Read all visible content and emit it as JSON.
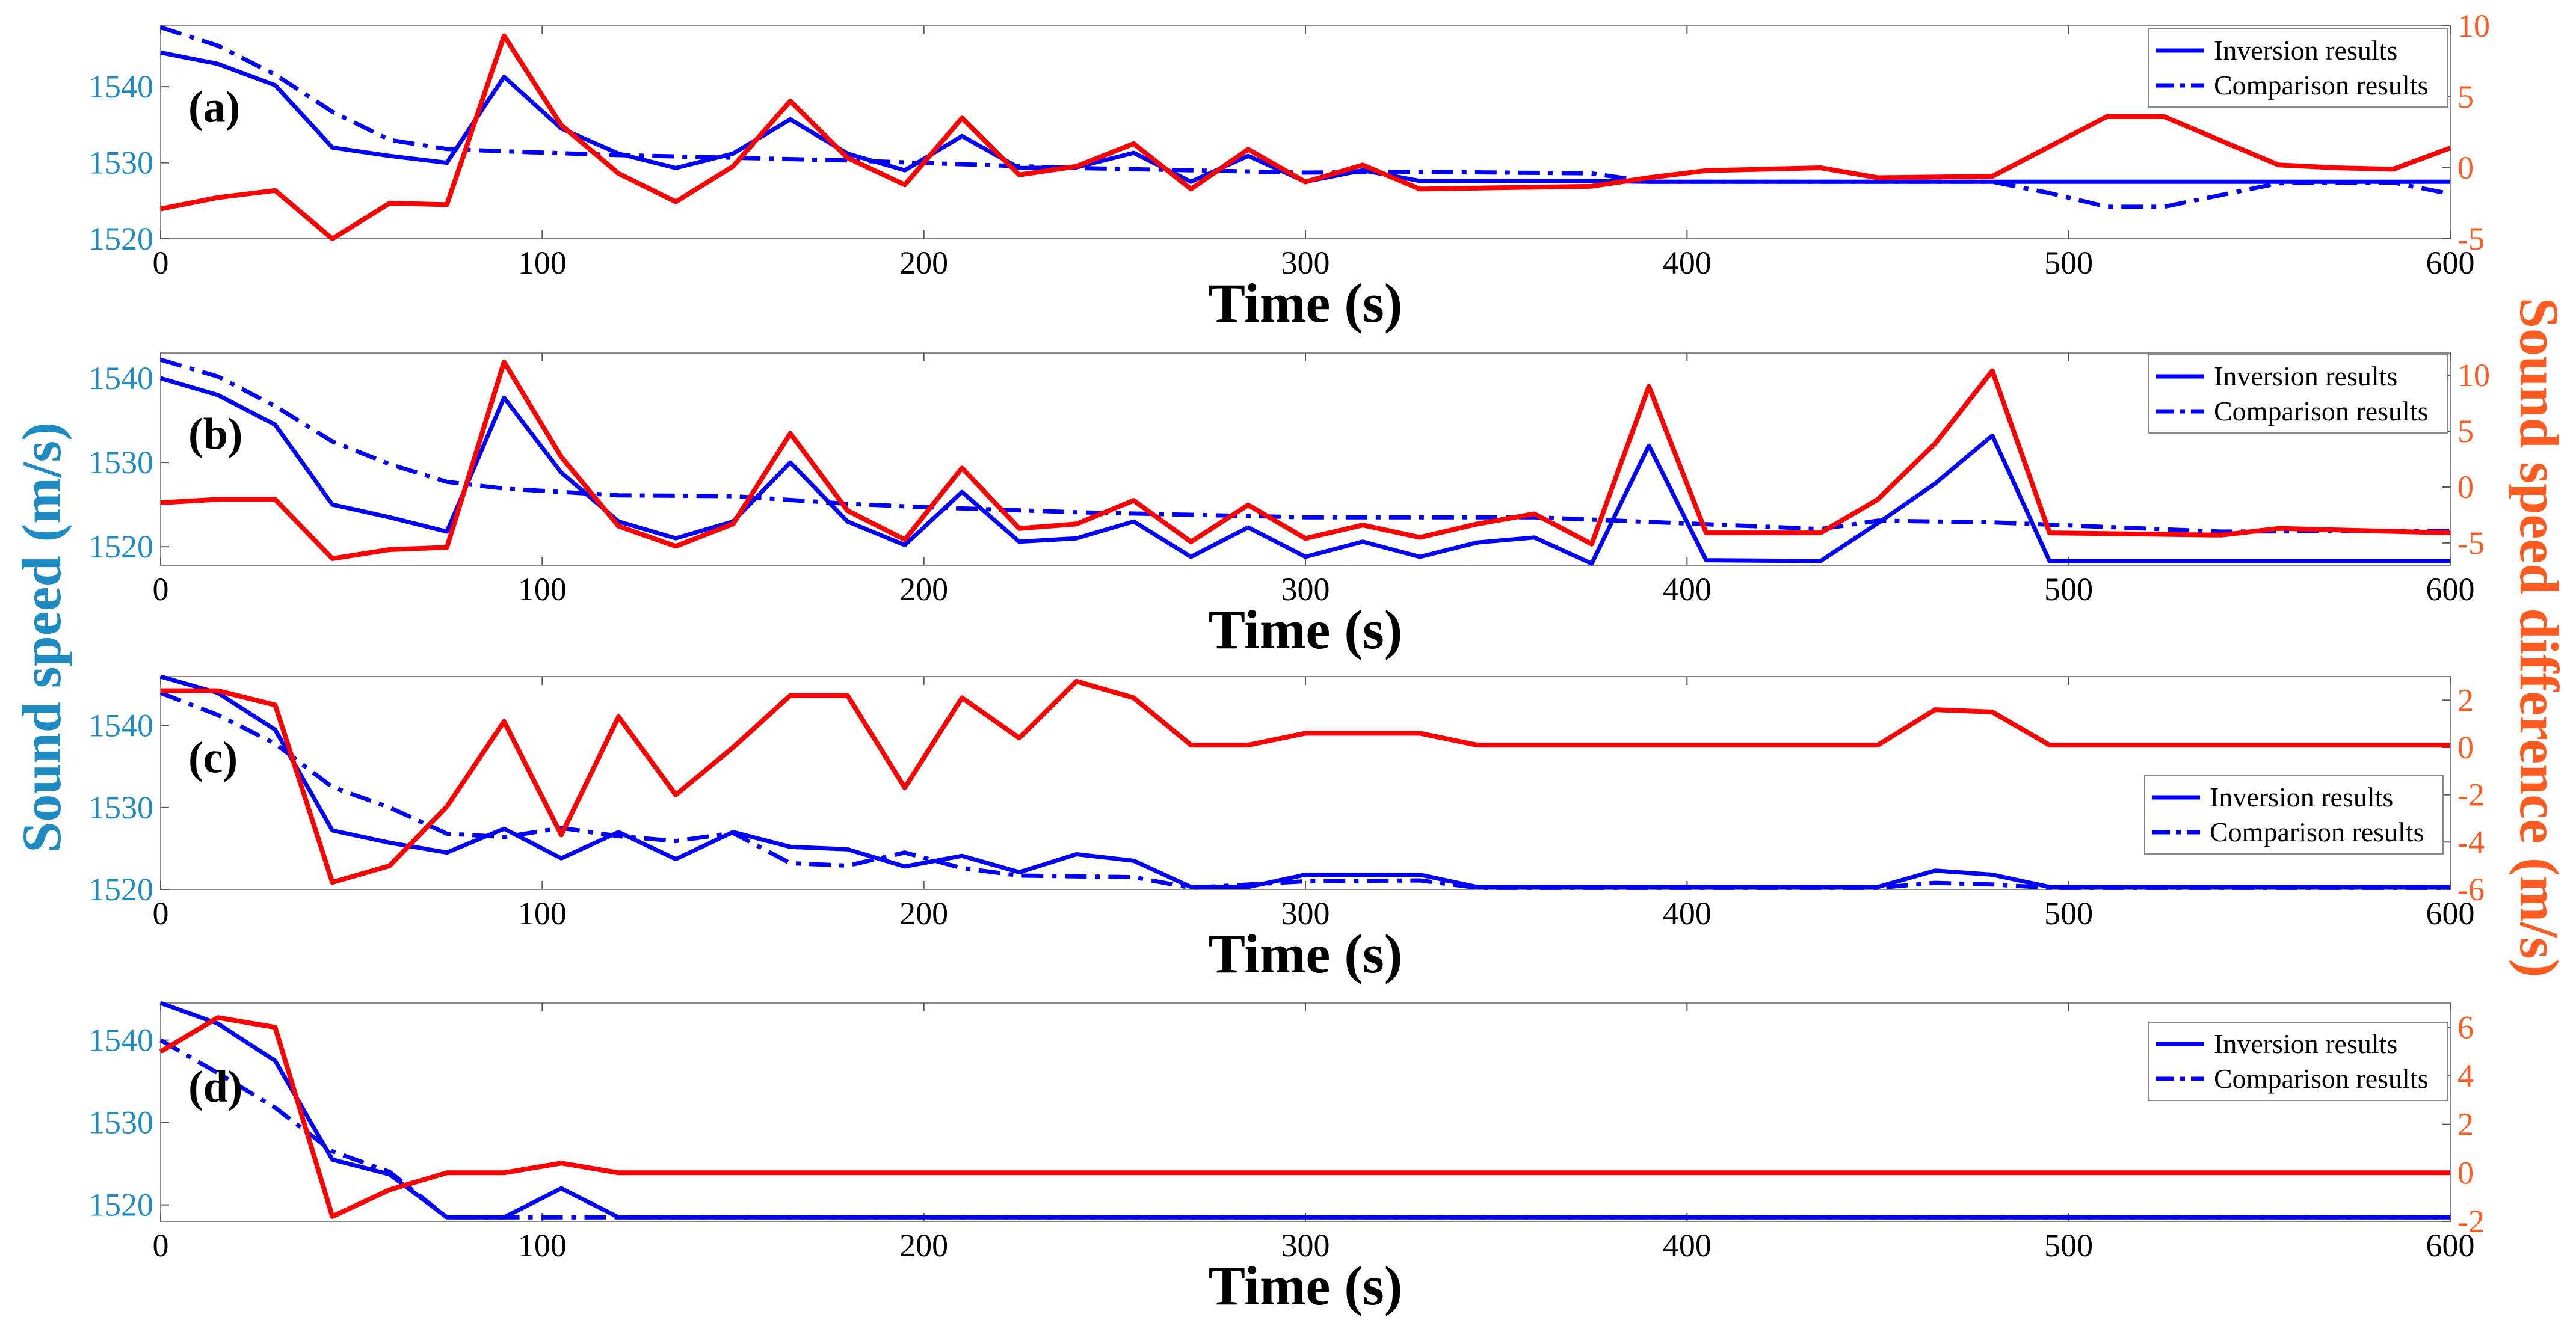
{
  "figure": {
    "ylabel_left": "Sound speed (m/s)",
    "ylabel_right": "Sound speed difference (m/s)",
    "colors": {
      "inversion": "#0000ff",
      "comparison": "#0000ff",
      "difference": "#ff0000",
      "left_axis": "#1e8bc3",
      "right_axis": "#ff5a1f"
    }
  },
  "chart_data": [
    {
      "type": "line",
      "panel_label": "(a)",
      "xlabel": "Time (s)",
      "xlim": [
        0,
        600
      ],
      "x_ticks": [
        0,
        100,
        200,
        300,
        400,
        500,
        600
      ],
      "ylim_left": [
        1520,
        1548
      ],
      "y_ticks_left": [
        1520,
        1530,
        1540
      ],
      "ylim_right": [
        -5,
        10
      ],
      "y_ticks_right": [
        -5,
        0,
        5,
        10
      ],
      "legend": [
        "Inversion results",
        "Comparison results"
      ],
      "legend_position": "top-right",
      "series": [
        {
          "name": "Inversion results",
          "axis": "left",
          "style": "solid",
          "x": [
            0,
            15,
            30,
            45,
            60,
            75,
            90,
            105,
            120,
            135,
            150,
            165,
            180,
            195,
            210,
            225,
            240,
            255,
            270,
            285,
            300,
            315,
            330,
            345,
            360,
            375,
            390,
            600
          ],
          "y": [
            1544.5,
            1543,
            1540.2,
            1532,
            1530.9,
            1530,
            1541.3,
            1534.5,
            1531.2,
            1529.3,
            1531.2,
            1535.7,
            1531.2,
            1529,
            1533.5,
            1529.3,
            1529.4,
            1531.3,
            1527.5,
            1530.9,
            1527.5,
            1529,
            1527.6,
            1527.6,
            1527.6,
            1527.6,
            1527.5,
            1527.5
          ]
        },
        {
          "name": "Comparison results",
          "axis": "left",
          "style": "dashdot",
          "x": [
            0,
            15,
            30,
            45,
            60,
            75,
            90,
            120,
            180,
            240,
            300,
            330,
            375,
            390,
            480,
            495,
            510,
            525,
            555,
            585,
            600
          ],
          "y": [
            1547.8,
            1545.4,
            1541.6,
            1536.7,
            1533,
            1531.8,
            1531.5,
            1531,
            1530.3,
            1529.3,
            1528.7,
            1528.8,
            1528.6,
            1527.5,
            1527.5,
            1526,
            1524.2,
            1524.2,
            1527.3,
            1527.4,
            1525.9
          ]
        },
        {
          "name": "Sound speed difference",
          "axis": "right",
          "style": "solid",
          "x": [
            0,
            15,
            30,
            45,
            60,
            75,
            90,
            105,
            120,
            135,
            150,
            165,
            180,
            195,
            210,
            225,
            240,
            255,
            270,
            285,
            300,
            315,
            330,
            375,
            390,
            405,
            435,
            450,
            480,
            510,
            525,
            555,
            570,
            585,
            600
          ],
          "y": [
            -2.9,
            -2.1,
            -1.6,
            -5,
            -2.5,
            -2.6,
            9.3,
            3,
            -0.4,
            -2.4,
            0.1,
            4.7,
            0.7,
            -1.2,
            3.5,
            -0.5,
            0.1,
            1.7,
            -1.5,
            1.3,
            -1,
            0.2,
            -1.5,
            -1.3,
            -0.7,
            -0.2,
            0,
            -0.7,
            -0.6,
            3.6,
            3.6,
            0.2,
            0,
            -0.1,
            1.4
          ]
        }
      ]
    },
    {
      "type": "line",
      "panel_label": "(b)",
      "xlabel": "Time (s)",
      "xlim": [
        0,
        600
      ],
      "x_ticks": [
        0,
        100,
        200,
        300,
        400,
        500,
        600
      ],
      "ylim_left": [
        1517.8,
        1543
      ],
      "y_ticks_left": [
        1520,
        1530,
        1540
      ],
      "ylim_right": [
        -7,
        12
      ],
      "y_ticks_right": [
        -5,
        0,
        5,
        10
      ],
      "legend": [
        "Inversion results",
        "Comparison results"
      ],
      "legend_position": "top-right",
      "series": [
        {
          "name": "Inversion results",
          "axis": "left",
          "style": "solid",
          "x": [
            0,
            15,
            30,
            45,
            60,
            75,
            90,
            105,
            120,
            135,
            150,
            165,
            180,
            195,
            210,
            225,
            240,
            255,
            270,
            285,
            300,
            315,
            330,
            345,
            360,
            375,
            390,
            405,
            435,
            450,
            465,
            480,
            495,
            600
          ],
          "y": [
            1540,
            1538,
            1534.5,
            1525,
            1523.5,
            1521.8,
            1537.7,
            1528.8,
            1523,
            1521,
            1523,
            1530,
            1523,
            1520.2,
            1526.5,
            1520.6,
            1521,
            1523,
            1518.8,
            1522.3,
            1518.8,
            1520.6,
            1518.8,
            1520.5,
            1521.1,
            1518,
            1532,
            1518.4,
            1518.3,
            1522.8,
            1527.5,
            1533.2,
            1518.3,
            1518.3
          ]
        },
        {
          "name": "Comparison results",
          "axis": "left",
          "style": "dashdot",
          "x": [
            0,
            15,
            30,
            45,
            60,
            75,
            90,
            120,
            150,
            180,
            200,
            240,
            300,
            360,
            420,
            435,
            450,
            480,
            540,
            600
          ],
          "y": [
            1542.2,
            1540.2,
            1536.7,
            1532.5,
            1529.8,
            1527.7,
            1526.9,
            1526.1,
            1526,
            1525.1,
            1524.7,
            1524.1,
            1523.5,
            1523.5,
            1522.4,
            1522.1,
            1523.1,
            1522.9,
            1521.8,
            1521.9
          ]
        },
        {
          "name": "Sound speed difference",
          "axis": "right",
          "style": "solid",
          "x": [
            0,
            15,
            30,
            45,
            60,
            75,
            90,
            105,
            120,
            135,
            150,
            165,
            180,
            195,
            210,
            225,
            240,
            255,
            270,
            285,
            300,
            315,
            330,
            345,
            360,
            375,
            390,
            405,
            435,
            450,
            465,
            480,
            495,
            540,
            555,
            600
          ],
          "y": [
            -1.4,
            -1.1,
            -1.1,
            -6.4,
            -5.6,
            -5.4,
            11.2,
            2.7,
            -3.5,
            -5.3,
            -3.3,
            4.8,
            -2.1,
            -4.7,
            1.7,
            -3.7,
            -3.3,
            -1.2,
            -4.9,
            -1.6,
            -4.6,
            -3.4,
            -4.5,
            -3.3,
            -2.4,
            -5.1,
            9,
            -4.1,
            -4.1,
            -1.1,
            3.9,
            10.4,
            -4.1,
            -4.3,
            -3.7,
            -4.1
          ]
        }
      ]
    },
    {
      "type": "line",
      "panel_label": "(c)",
      "xlabel": "Time (s)",
      "xlim": [
        0,
        600
      ],
      "x_ticks": [
        0,
        100,
        200,
        300,
        400,
        500,
        600
      ],
      "ylim_left": [
        1520,
        1546
      ],
      "y_ticks_left": [
        1520,
        1530,
        1540
      ],
      "ylim_right": [
        -6,
        3
      ],
      "y_ticks_right": [
        -6,
        -4,
        -2,
        0,
        2
      ],
      "legend": [
        "Inversion results",
        "Comparison results"
      ],
      "legend_position": "center-right",
      "series": [
        {
          "name": "Inversion results",
          "axis": "left",
          "style": "solid",
          "x": [
            0,
            15,
            30,
            45,
            60,
            75,
            90,
            105,
            120,
            135,
            150,
            165,
            180,
            195,
            210,
            225,
            240,
            255,
            270,
            285,
            300,
            315,
            330,
            345,
            450,
            465,
            480,
            495,
            600
          ],
          "y": [
            1546,
            1544,
            1539.5,
            1527.2,
            1525.7,
            1524.5,
            1527.4,
            1523.8,
            1527,
            1523.7,
            1527,
            1525.2,
            1524.9,
            1522.8,
            1524.1,
            1522.1,
            1524.3,
            1523.5,
            1520.3,
            1520.3,
            1521.8,
            1521.8,
            1521.8,
            1520.3,
            1520.3,
            1522.3,
            1521.8,
            1520.3,
            1520.3
          ]
        },
        {
          "name": "Comparison results",
          "axis": "left",
          "style": "dashdot",
          "x": [
            0,
            15,
            30,
            45,
            60,
            75,
            90,
            105,
            120,
            135,
            150,
            165,
            180,
            195,
            210,
            225,
            255,
            270,
            300,
            330,
            345,
            450,
            465,
            480,
            495,
            600
          ],
          "y": [
            1544,
            1541.3,
            1537.8,
            1532.5,
            1530,
            1526.8,
            1526.4,
            1527.5,
            1526.5,
            1525.9,
            1526.9,
            1523.2,
            1522.9,
            1524.5,
            1522.6,
            1521.7,
            1521.5,
            1520.2,
            1521,
            1521.1,
            1520.2,
            1520.2,
            1520.8,
            1520.6,
            1520.2,
            1520.2
          ]
        },
        {
          "name": "Sound speed difference",
          "axis": "right",
          "style": "solid",
          "x": [
            0,
            15,
            30,
            45,
            60,
            75,
            90,
            105,
            120,
            135,
            150,
            165,
            180,
            195,
            210,
            225,
            240,
            255,
            270,
            285,
            300,
            315,
            330,
            345,
            450,
            465,
            480,
            495,
            600
          ],
          "y": [
            2.4,
            2.4,
            1.8,
            -5.7,
            -5,
            -2.5,
            1.1,
            -3.7,
            1.3,
            -2,
            0,
            2.2,
            2.2,
            -1.7,
            2.1,
            0.4,
            2.8,
            2.1,
            0.1,
            0.1,
            0.6,
            0.6,
            0.6,
            0.1,
            0.1,
            1.6,
            1.5,
            0.1,
            0.1
          ]
        }
      ]
    },
    {
      "type": "line",
      "panel_label": "(d)",
      "xlabel": "Time (s)",
      "xlim": [
        0,
        600
      ],
      "x_ticks": [
        0,
        100,
        200,
        300,
        400,
        500,
        600
      ],
      "ylim_left": [
        1518,
        1544.5
      ],
      "y_ticks_left": [
        1520,
        1530,
        1540
      ],
      "ylim_right": [
        -2,
        7
      ],
      "y_ticks_right": [
        -2,
        0,
        2,
        4,
        6
      ],
      "legend": [
        "Inversion results",
        "Comparison results"
      ],
      "legend_position": "top-right",
      "series": [
        {
          "name": "Inversion results",
          "axis": "left",
          "style": "solid",
          "x": [
            0,
            15,
            30,
            45,
            60,
            75,
            90,
            105,
            120,
            600
          ],
          "y": [
            1544.5,
            1542,
            1537.5,
            1525.5,
            1523.7,
            1518.5,
            1518.5,
            1522,
            1518.5,
            1518.5
          ]
        },
        {
          "name": "Comparison results",
          "axis": "left",
          "style": "dashdot",
          "x": [
            0,
            15,
            30,
            45,
            60,
            75,
            600
          ],
          "y": [
            1540,
            1536,
            1531.8,
            1526.5,
            1524,
            1518.5,
            1518.5
          ]
        },
        {
          "name": "Sound speed difference",
          "axis": "right",
          "style": "solid",
          "x": [
            0,
            15,
            30,
            45,
            60,
            75,
            90,
            105,
            120,
            600
          ],
          "y": [
            5,
            6.4,
            6,
            -1.8,
            -0.7,
            0,
            0,
            0.4,
            0,
            0
          ]
        }
      ]
    }
  ]
}
